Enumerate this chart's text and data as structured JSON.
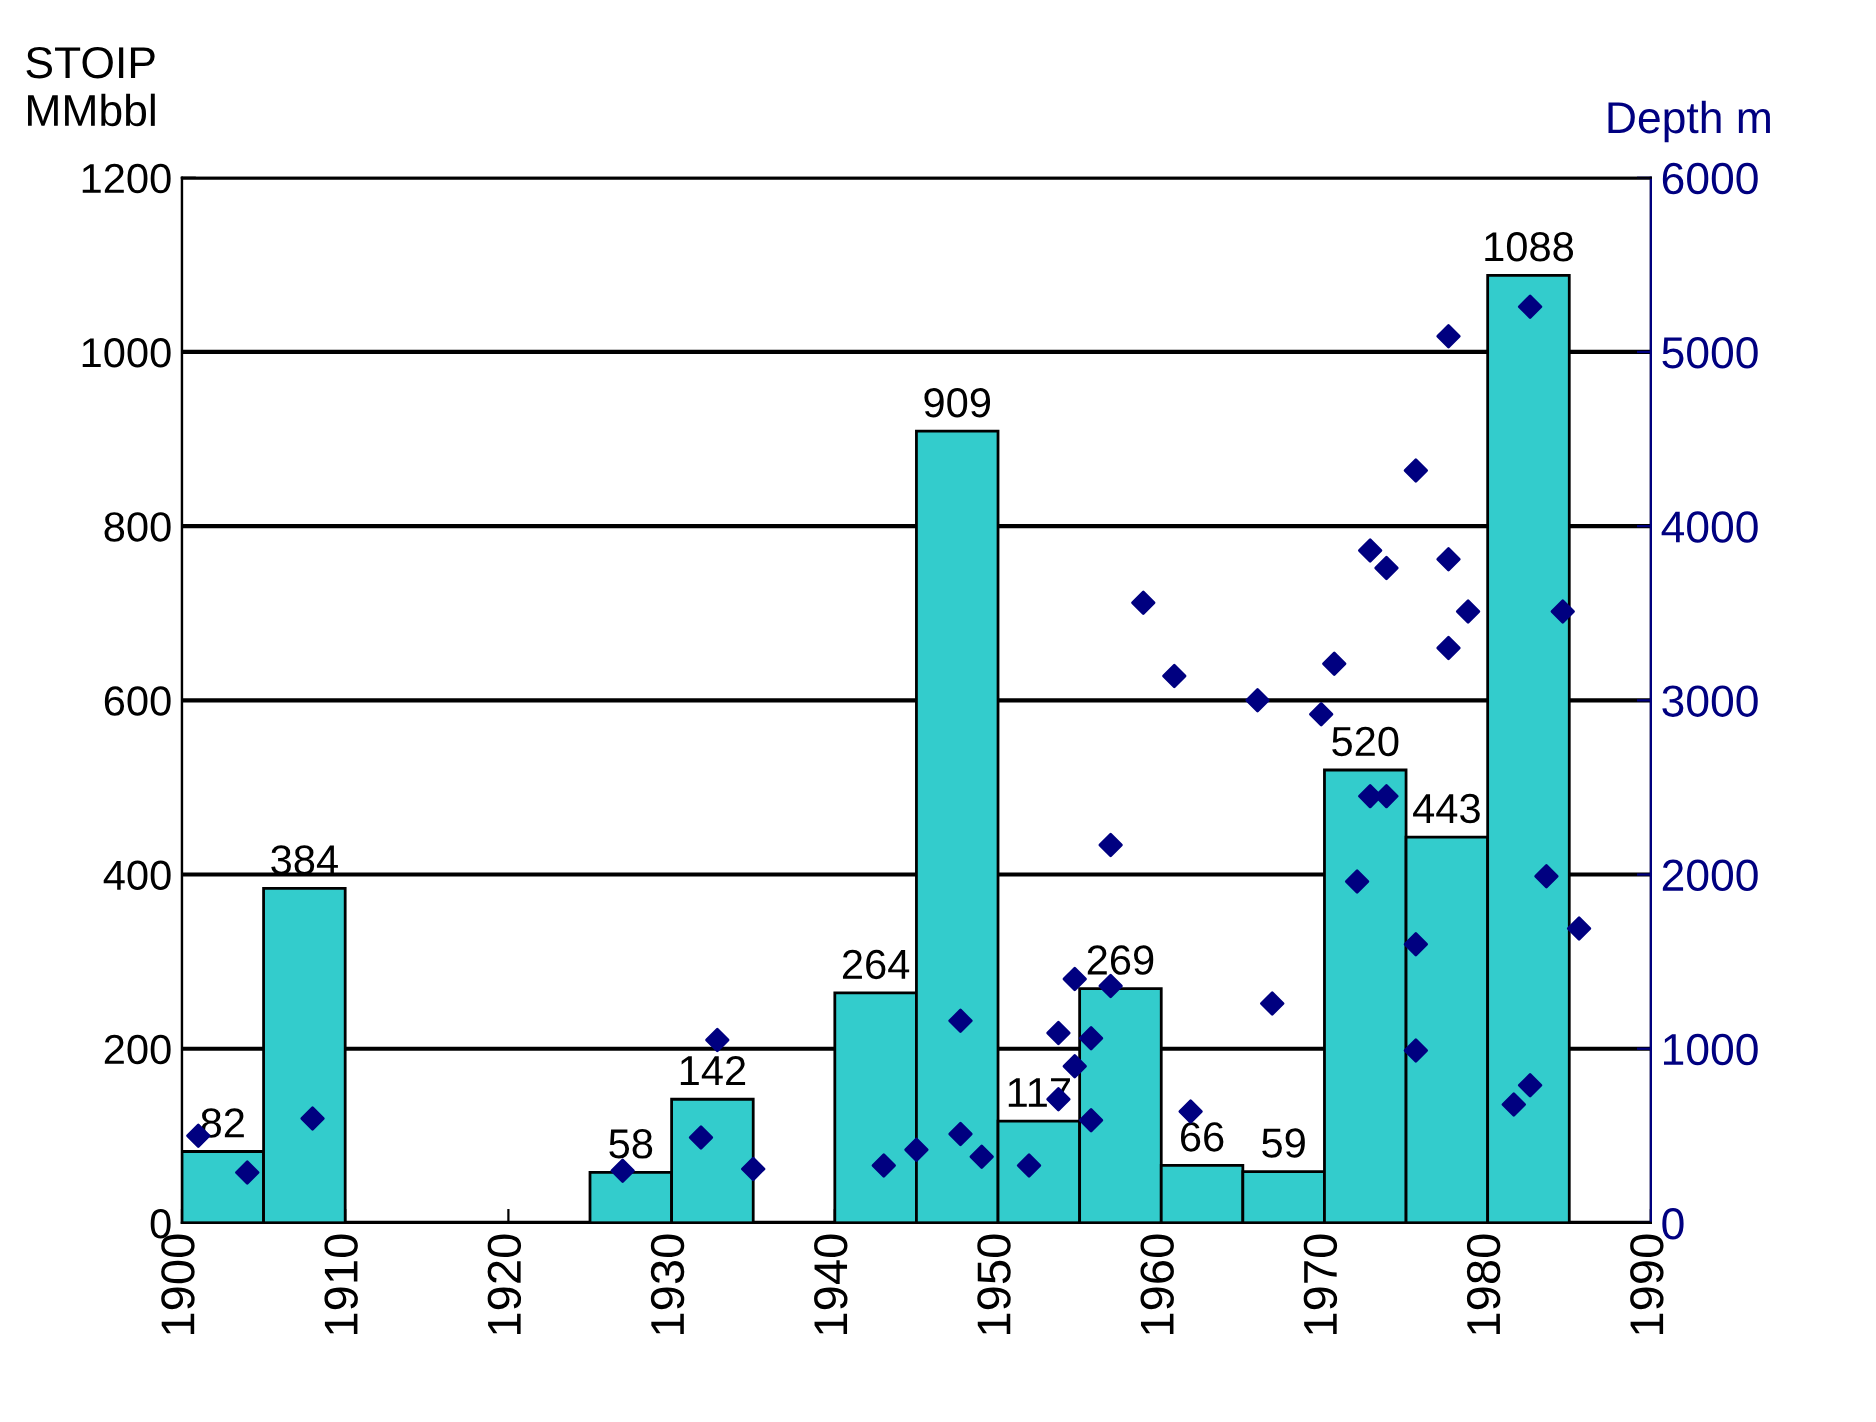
{
  "chart_data": {
    "type": "histogram",
    "ylabel": "STOIP\nMMbbl",
    "y2label": "Depth m",
    "bins": [
      1900,
      1905,
      1910,
      1915,
      1920,
      1925,
      1930,
      1935,
      1940,
      1945,
      1950,
      1955,
      1960,
      1965,
      1970,
      1975,
      1980,
      1985
    ],
    "values": [
      82,
      384,
      null,
      null,
      null,
      58,
      142,
      null,
      264,
      909,
      117,
      269,
      66,
      59,
      520,
      443,
      1088
    ],
    "value_labels": [
      "82",
      "384",
      null,
      null,
      null,
      "58",
      "142",
      null,
      "264",
      "909",
      "117",
      "269",
      "66",
      "59",
      "520",
      "443",
      "1088"
    ],
    "color": "#33cccc",
    "series": [
      {
        "type": "scatter",
        "axis": "y2",
        "color": "#000080",
        "marker": "diamond",
        "x": [
          1901,
          1904,
          1908,
          1927,
          1931.8,
          1932.8,
          1935,
          1943,
          1945,
          1947.7,
          1947.7,
          1949,
          1951.9,
          1953.7,
          1953.7,
          1954.7,
          1954.7,
          1955.7,
          1955.7,
          1956.9,
          1956.9,
          1958.9,
          1960.8,
          1961.8,
          1965.9,
          1966.8,
          1969.8,
          1970.6,
          1972,
          1972.8,
          1972.8,
          1973.8,
          1973.8,
          1975.6,
          1975.6,
          1975.6,
          1977.6,
          1977.6,
          1977.6,
          1978.8,
          1981.6,
          1982.6,
          1982.6,
          1983.6,
          1984.6,
          1985.6
        ],
        "values": [
          500,
          290,
          600,
          300,
          490,
          1050,
          310,
          330,
          420,
          1160,
          510,
          380,
          330,
          1090,
          710,
          1400,
          900,
          1060,
          590,
          1360,
          2170,
          3560,
          3140,
          640,
          3000,
          1260,
          2920,
          3210,
          1960,
          3860,
          2450,
          3760,
          2450,
          4320,
          1600,
          990,
          5090,
          3810,
          3300,
          3510,
          680,
          790,
          5260,
          1990,
          3510,
          1690
        ]
      }
    ],
    "xlim": [
      1900,
      1990
    ],
    "xticks": [
      1900,
      1910,
      1920,
      1930,
      1940,
      1950,
      1960,
      1970,
      1980,
      1990
    ],
    "ylim": [
      0,
      1200
    ],
    "yticks": [
      0,
      200,
      400,
      600,
      800,
      1000,
      1200
    ],
    "y2lim": [
      0,
      6000
    ],
    "y2ticks": [
      0,
      1000,
      2000,
      3000,
      4000,
      5000,
      6000
    ],
    "grid": "y"
  }
}
